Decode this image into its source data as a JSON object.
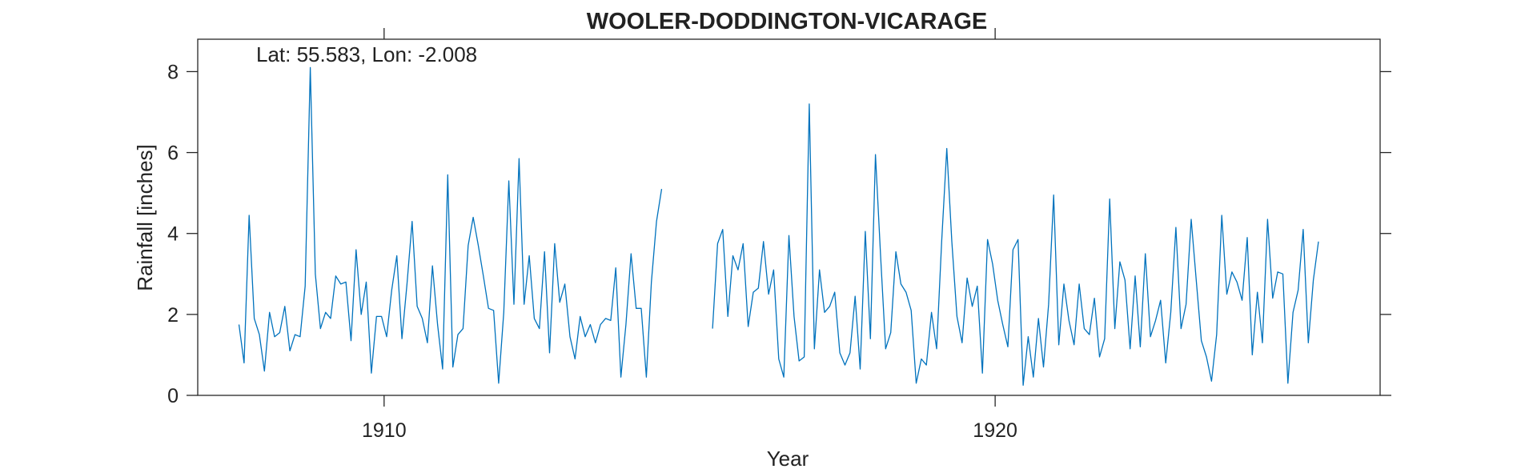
{
  "chart_data": {
    "type": "line",
    "title": "WOOLER-DODDINGTON-VICARAGE",
    "xlabel": "Year",
    "ylabel": "Rainfall [inches]",
    "annotation": "Lat: 55.583, Lon: -2.008",
    "xlim": [
      1906.95,
      1926.3
    ],
    "ylim": [
      0,
      8.8
    ],
    "xticks": [
      1910,
      1920
    ],
    "yticks": [
      0,
      2,
      4,
      6,
      8
    ],
    "grid": false,
    "line_color": "#0072BD",
    "series": [
      {
        "x_start": 1907.625,
        "x_step": 0.08333,
        "values": [
          1.75,
          0.8,
          4.45,
          1.9,
          1.5,
          0.6,
          2.05,
          1.45,
          1.55,
          2.2,
          1.1,
          1.5,
          1.45,
          2.7,
          8.1,
          3.0,
          1.65,
          2.05,
          1.9,
          2.95,
          2.75,
          2.8,
          1.35,
          3.6,
          2.0,
          2.8,
          0.55,
          1.95,
          1.95,
          1.45,
          2.6,
          3.45,
          1.4,
          2.75,
          4.3,
          2.2,
          1.9,
          1.3,
          3.2,
          1.75,
          0.65,
          5.45,
          0.7,
          1.5,
          1.65,
          3.7,
          4.4,
          3.7,
          2.95,
          2.15,
          2.1,
          0.3,
          2.05,
          5.3,
          2.25,
          5.85,
          2.25,
          3.45,
          1.9,
          1.65,
          3.55,
          1.05,
          3.75,
          2.3,
          2.75,
          1.45,
          0.9,
          1.95,
          1.45,
          1.75,
          1.3,
          1.75,
          1.9,
          1.85,
          3.15,
          0.45,
          1.75,
          3.5,
          2.15,
          2.15,
          0.45,
          2.8,
          4.3,
          5.1
        ]
      },
      {
        "x_start": 1915.375,
        "x_step": 0.08333,
        "values": [
          1.65,
          3.75,
          4.1,
          1.95,
          3.45,
          3.1,
          3.75,
          1.7,
          2.55,
          2.65,
          3.8,
          2.5,
          3.1,
          0.9,
          0.45,
          3.95,
          1.95,
          0.85,
          0.95,
          7.2,
          1.15,
          3.1,
          2.05,
          2.2,
          2.55,
          1.05,
          0.75,
          1.05,
          2.45,
          0.65,
          4.05,
          1.4,
          5.95,
          3.45,
          1.15,
          1.55,
          3.55,
          2.75,
          2.55,
          2.1,
          0.3,
          0.9,
          0.75,
          2.05,
          1.15,
          3.8,
          6.1,
          3.8,
          1.95,
          1.3,
          2.9,
          2.2,
          2.7,
          0.55,
          3.85,
          3.25,
          2.35,
          1.75,
          1.2,
          3.6,
          3.85,
          0.25,
          1.45,
          0.45,
          1.9,
          0.7,
          2.25,
          4.95,
          1.25,
          2.75,
          1.85,
          1.25,
          2.75,
          1.65,
          1.5,
          2.4,
          0.95,
          1.4,
          4.85,
          1.65,
          3.3,
          2.85,
          1.15,
          2.95,
          1.2,
          3.5,
          1.45,
          1.85,
          2.35,
          0.8,
          2.05,
          4.15,
          1.65,
          2.25,
          4.35,
          2.85,
          1.35,
          0.95,
          0.35,
          1.5,
          4.45,
          2.5,
          3.05,
          2.8,
          2.35,
          3.9,
          1.0,
          2.55,
          1.3,
          4.35,
          2.4,
          3.05,
          3.0,
          0.3,
          2.05,
          2.6,
          4.1,
          1.3,
          2.85,
          3.8
        ]
      }
    ]
  }
}
